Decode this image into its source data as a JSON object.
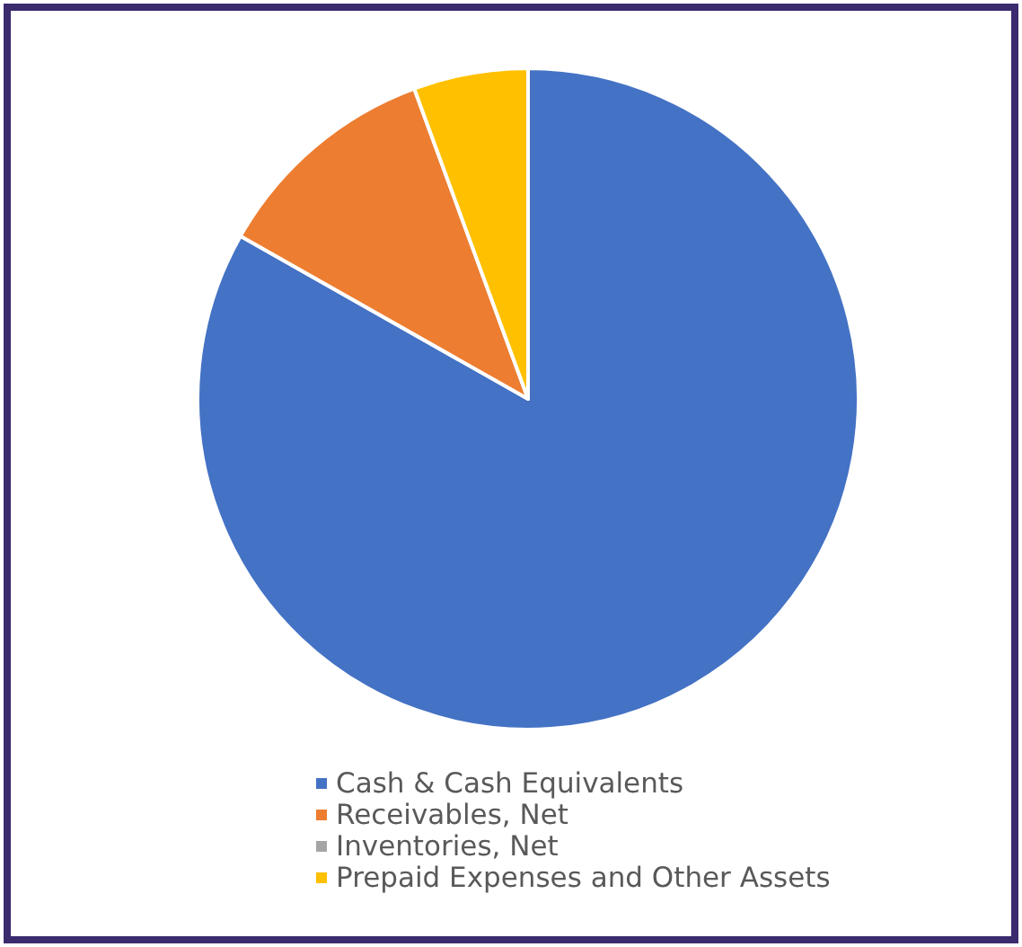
{
  "chart_data": {
    "type": "pie",
    "categories": [
      "Cash & Cash Equivalents",
      "Receivables, Net",
      "Inventories, Net",
      "Prepaid Expenses and Other Assets"
    ],
    "values": [
      83.2,
      11.2,
      0,
      5.6
    ],
    "colors": [
      "#4472c4",
      "#ed7d31",
      "#a5a5a5",
      "#ffc000"
    ],
    "legend": "bottom"
  }
}
